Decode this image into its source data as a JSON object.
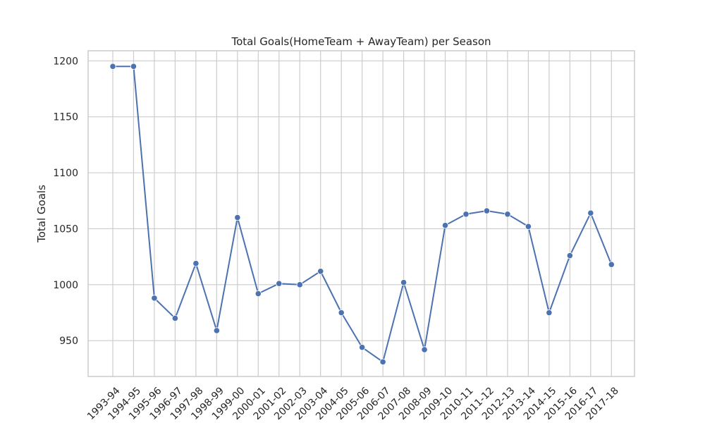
{
  "chart_data": {
    "type": "line",
    "title": "Total Goals(HomeTeam + AwayTeam) per Season",
    "xlabel": "",
    "ylabel": "Total Goals",
    "categories": [
      "1993-94",
      "1994-95",
      "1995-96",
      "1996-97",
      "1997-98",
      "1998-99",
      "1999-00",
      "2000-01",
      "2001-02",
      "2002-03",
      "2003-04",
      "2004-05",
      "2005-06",
      "2006-07",
      "2007-08",
      "2008-09",
      "2009-10",
      "2010-11",
      "2011-12",
      "2012-13",
      "2013-14",
      "2014-15",
      "2015-16",
      "2016-17",
      "2017-18"
    ],
    "series": [
      {
        "values": [
          1195,
          1195,
          988,
          970,
          1019,
          959,
          1060,
          992,
          1001,
          1000,
          1012,
          975,
          944,
          931,
          1002,
          942,
          1053,
          1063,
          1066,
          1063,
          1052,
          975,
          1026,
          1064,
          1018
        ]
      }
    ],
    "ylim": [
      918,
      1209
    ],
    "yticks": [
      950,
      1000,
      1050,
      1100,
      1150,
      1200
    ],
    "grid": true,
    "colors": {
      "line": "#4c72b0",
      "grid": "#cccccc",
      "frame": "#cccccc"
    }
  }
}
